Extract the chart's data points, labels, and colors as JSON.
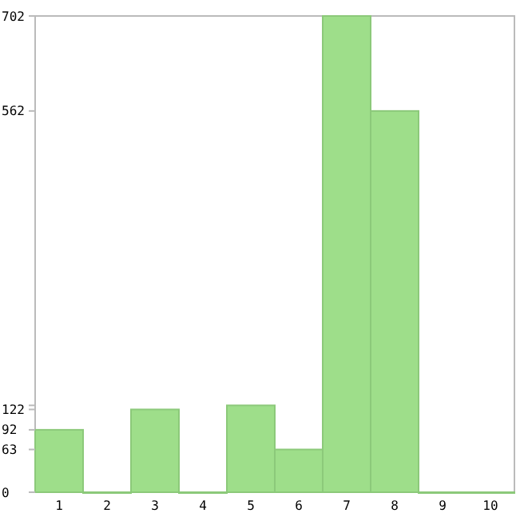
{
  "chart_data": {
    "type": "bar",
    "categories": [
      "1",
      "2",
      "3",
      "4",
      "5",
      "6",
      "7",
      "8",
      "9",
      "10"
    ],
    "values": [
      92,
      0,
      122,
      0,
      128,
      63,
      702,
      562,
      0,
      0
    ],
    "color": "#9ede8a",
    "ylim": [
      0,
      702
    ],
    "yticks": [
      0,
      63,
      92,
      122,
      {
        "value": 128,
        "label": null
      },
      562,
      702
    ],
    "grid": false,
    "legend": false
  }
}
